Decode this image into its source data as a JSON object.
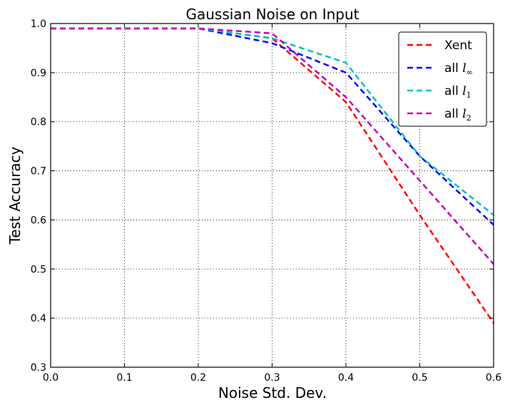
{
  "chart_data": {
    "type": "line",
    "title": "Gaussian Noise on Input",
    "xlabel": "Noise Std. Dev.",
    "ylabel": "Test Accuracy",
    "xlim": [
      0.0,
      0.6
    ],
    "ylim": [
      0.3,
      1.0
    ],
    "xticks": [
      "0.0",
      "0.1",
      "0.2",
      "0.3",
      "0.4",
      "0.5",
      "0.6"
    ],
    "yticks": [
      "0.3",
      "0.4",
      "0.5",
      "0.6",
      "0.7",
      "0.8",
      "0.9",
      "1.0"
    ],
    "grid": true,
    "legend_position": "top-right",
    "x": [
      0.0,
      0.1,
      0.2,
      0.3,
      0.4,
      0.5,
      0.6
    ],
    "series": [
      {
        "name": "Xent",
        "color": "#ff0000",
        "dash": "dashed",
        "values": [
          0.99,
          0.99,
          0.99,
          0.97,
          0.84,
          0.61,
          0.39
        ]
      },
      {
        "name": "all l∞",
        "base": "all",
        "math": "l",
        "sub": "∞",
        "color": "#0000ff",
        "dash": "dashed",
        "values": [
          0.99,
          0.99,
          0.99,
          0.96,
          0.9,
          0.73,
          0.59
        ]
      },
      {
        "name": "all l1",
        "base": "all",
        "math": "l",
        "sub": "1",
        "color": "#00bfbf",
        "dash": "dashed",
        "values": [
          0.99,
          0.99,
          0.99,
          0.97,
          0.92,
          0.73,
          0.61
        ]
      },
      {
        "name": "all l2",
        "base": "all",
        "math": "l",
        "sub": "2",
        "color": "#bf00bf",
        "dash": "dashed",
        "values": [
          0.99,
          0.99,
          0.99,
          0.98,
          0.85,
          0.68,
          0.51
        ]
      }
    ]
  }
}
